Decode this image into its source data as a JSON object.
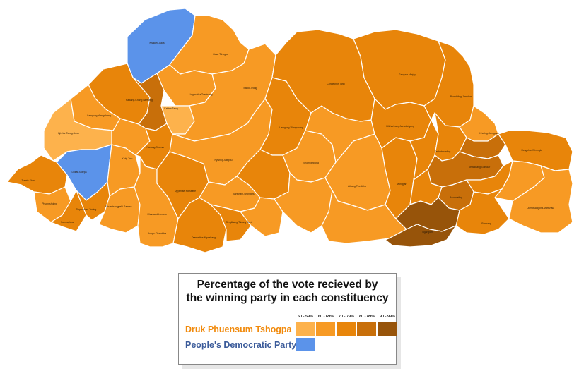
{
  "colors": {
    "background": "#ffffff",
    "region_stroke": "#ffffff",
    "dpt_scale": [
      "#fdb24c",
      "#f79a24",
      "#e8850a",
      "#c86f0a",
      "#97540a"
    ],
    "pdp": "#5b93ea"
  },
  "legend": {
    "title": "Percentage of the vote recieved by\nthe winning party in each constituency",
    "ranges": [
      "50 - 59%",
      "60 - 69%",
      "70 - 79%",
      "80 - 89%",
      "90 - 99%"
    ],
    "parties": [
      {
        "name": "Druk Phuensum Tshogpa",
        "color": "#f18a0c"
      },
      {
        "name": "People's Democratic Party",
        "color": "#3b5b9a"
      }
    ]
  },
  "constituencies": [
    {
      "name": "Khatoed-Laya",
      "party": "PDP",
      "band": ""
    },
    {
      "name": "Gasa Tshogoe",
      "party": "DPT",
      "band": "70 - 79%"
    },
    {
      "name": "Lingmukha Toedwang",
      "party": "DPT",
      "band": "60 - 69%"
    },
    {
      "name": "Kabisa Talog",
      "party": "DPT",
      "band": "60 - 69%"
    },
    {
      "name": "Kawang-Chang Nanyang",
      "party": "DPT",
      "band": "80 - 89%"
    },
    {
      "name": "Lamgong-Wangchang",
      "party": "DPT",
      "band": "60 - 69%"
    },
    {
      "name": "Bji-Kar-Tshog-Uesu",
      "party": "DPT",
      "band": "50 - 59%"
    },
    {
      "name": "Nanong-Shumar",
      "party": "DPT",
      "band": "70 - 79%"
    },
    {
      "name": "Kabji-Talo",
      "party": "DPT",
      "band": "80 - 89%"
    },
    {
      "name": "Dokar-Sharpa",
      "party": "PDP",
      "band": ""
    },
    {
      "name": "Tsento-Shari",
      "party": "DPT",
      "band": "60 - 69%"
    },
    {
      "name": "Phuentsholing",
      "party": "DPT",
      "band": "60 - 69%"
    },
    {
      "name": "Sombaykha",
      "party": "DPT",
      "band": "60 - 69%"
    },
    {
      "name": "Dophuchen-Tading",
      "party": "DPT",
      "band": "70 - 79%"
    },
    {
      "name": "Phuentshogpelri-Samtse",
      "party": "DPT",
      "band": "60 - 69%"
    },
    {
      "name": "Ugyentse-Yoeseltse",
      "party": "DPT",
      "band": "70 - 79%"
    },
    {
      "name": "Dramedtse-Ngatshang",
      "party": "DPT",
      "band": "70 - 79%"
    },
    {
      "name": "Bartsham-Shongphu",
      "party": "DPT",
      "band": "70 - 79%"
    },
    {
      "name": "Chhoekhor-Tang",
      "party": "DPT",
      "band": "70 - 79%"
    },
    {
      "name": "Bardo-Trong",
      "party": "DPT",
      "band": "60 - 69%"
    },
    {
      "name": "Nyishog-Saephu",
      "party": "DPT",
      "band": "60 - 69%"
    },
    {
      "name": "Khamaed-Lunana",
      "party": "DPT",
      "band": "60 - 69%"
    },
    {
      "name": "Bumdeling-Jamkhar",
      "party": "DPT",
      "band": "70 - 79%"
    },
    {
      "name": "Lamgong-Wangchang",
      "party": "DPT",
      "band": "60 - 69%"
    },
    {
      "name": "Gangzur-Minjay",
      "party": "DPT",
      "band": "70 - 79%"
    },
    {
      "name": "Khaling-Kangpara",
      "party": "DPT",
      "band": "60 - 69%"
    },
    {
      "name": "Kengkhar-Weringla",
      "party": "DPT",
      "band": "70 - 79%"
    },
    {
      "name": "Jomotsangkha-Martshala",
      "party": "DPT",
      "band": "60 - 69%"
    },
    {
      "name": "Kilkhorthang-Mendrelgang",
      "party": "DPT",
      "band": "70 - 79%"
    },
    {
      "name": "Tashichhoeling",
      "party": "DPT",
      "band": "70 - 79%"
    },
    {
      "name": "Dewathang-Gomdar",
      "party": "DPT",
      "band": "60 - 69%"
    },
    {
      "name": "Shompangkha",
      "party": "DPT",
      "band": "60 - 69%"
    },
    {
      "name": "Panbang",
      "party": "DPT",
      "band": "70 - 79%"
    },
    {
      "name": "Nganglam",
      "party": "DPT",
      "band": "90 - 99%"
    },
    {
      "name": "Bongo-Chapchha",
      "party": "DPT",
      "band": "60 - 69%"
    },
    {
      "name": "Athang-Thedtsho",
      "party": "DPT",
      "band": "60 - 69%"
    },
    {
      "name": "Sergithang-Tsirang Toed",
      "party": "DPT",
      "band": "70 - 79%"
    },
    {
      "name": "Monggar",
      "party": "DPT",
      "band": "70 - 79%"
    },
    {
      "name": "Boomdeling",
      "party": "DPT",
      "band": "80 - 89%"
    }
  ]
}
